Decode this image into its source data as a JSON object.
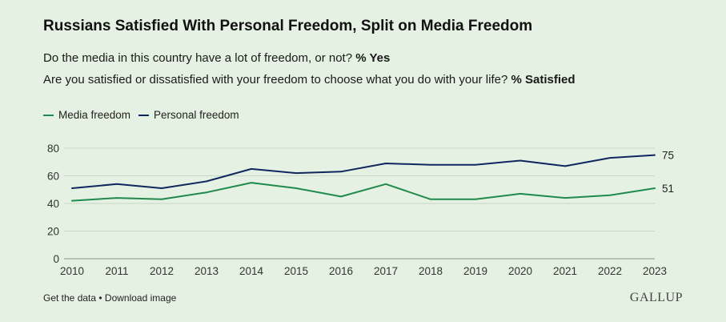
{
  "colors": {
    "background": "#e5f1e2",
    "media": "#1f8a4c",
    "personal": "#10265e",
    "grid": "#c9d8c6"
  },
  "chart_data": {
    "type": "line",
    "title": "Russians Satisfied With Personal Freedom, Split on Media Freedom",
    "subtitle_1_text": "Do the media in this country have a lot of freedom, or not?",
    "subtitle_1_bold": "% Yes",
    "subtitle_2_text": "Are you satisfied or dissatisfied with your freedom to choose what you do with your life?",
    "subtitle_2_bold": "% Satisfied",
    "x": [
      "2010",
      "2011",
      "2012",
      "2013",
      "2014",
      "2015",
      "2016",
      "2017",
      "2018",
      "2019",
      "2020",
      "2021",
      "2022",
      "2023"
    ],
    "yticks": [
      0,
      20,
      40,
      60,
      80
    ],
    "ylim": [
      0,
      80
    ],
    "grid": true,
    "legend_position": "top-left",
    "series": [
      {
        "name": "Media freedom",
        "key": "media",
        "values": [
          42,
          44,
          43,
          48,
          55,
          51,
          45,
          54,
          43,
          43,
          47,
          44,
          46,
          51
        ],
        "end_label": "51"
      },
      {
        "name": "Personal freedom",
        "key": "personal",
        "values": [
          51,
          54,
          51,
          56,
          65,
          62,
          63,
          69,
          68,
          68,
          71,
          67,
          73,
          75
        ],
        "end_label": "75"
      }
    ]
  },
  "footer": {
    "text": "Get the data • Download image"
  },
  "logo": {
    "text": "GALLUP"
  }
}
